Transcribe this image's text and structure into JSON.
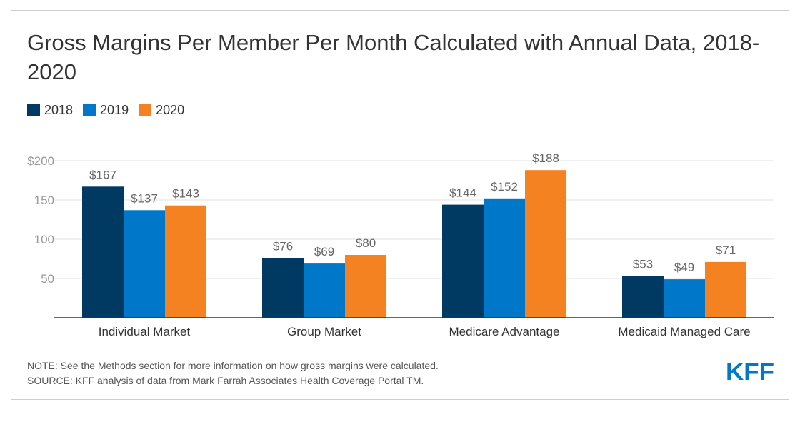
{
  "title": "Gross Margins Per Member Per Month Calculated with Annual Data, 2018-2020",
  "note": "NOTE: See the Methods section for more information on how gross margins were calculated.",
  "source": "SOURCE: KFF analysis of data from Mark Farrah Associates Health Coverage Portal TM.",
  "logo_text": "KFF",
  "colors": {
    "2018": "#003a63",
    "2019": "#0077c8",
    "2020": "#f58220",
    "logo": "#0077c8"
  },
  "chart_data": {
    "type": "bar",
    "title": "Gross Margins Per Member Per Month Calculated with Annual Data, 2018-2020",
    "categories": [
      "Individual Market",
      "Group Market",
      "Medicare Advantage",
      "Medicaid Managed Care"
    ],
    "series": [
      {
        "name": "2018",
        "color": "#003a63",
        "values": [
          167,
          76,
          144,
          53
        ],
        "labels": [
          "$167",
          "$76",
          "$144",
          "$53"
        ]
      },
      {
        "name": "2019",
        "color": "#0077c8",
        "values": [
          137,
          69,
          152,
          49
        ],
        "labels": [
          "$137",
          "$69",
          "$152",
          "$49"
        ]
      },
      {
        "name": "2020",
        "color": "#f58220",
        "values": [
          143,
          80,
          188,
          71
        ],
        "labels": [
          "$143",
          "$80",
          "$188",
          "$71"
        ]
      }
    ],
    "yticks": [
      50,
      100,
      150,
      200
    ],
    "ytick_labels": [
      "50",
      "100",
      "150",
      "$200"
    ],
    "ylim": [
      0,
      200
    ],
    "xlabel": "",
    "ylabel": "",
    "grid": true,
    "legend": "top-left"
  }
}
